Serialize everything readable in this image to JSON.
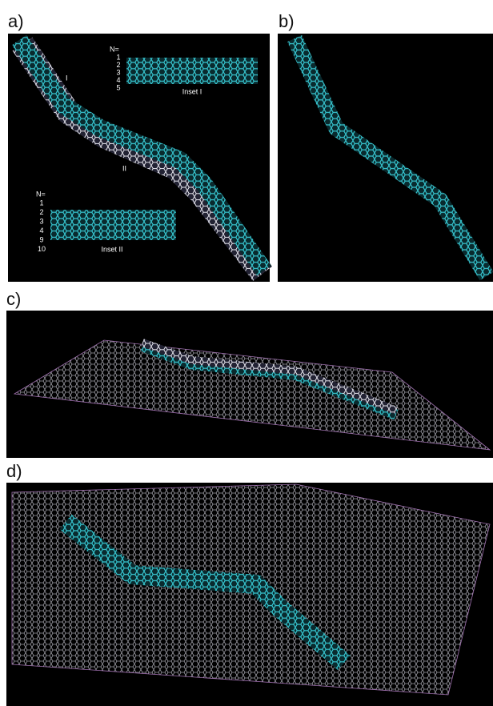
{
  "panels": [
    "a)",
    "b)",
    "c)",
    "d)"
  ],
  "panel_a": {
    "markers": [
      "I",
      "II"
    ],
    "inset_1": {
      "heading": "N=",
      "rows": [
        "1",
        "2",
        "3",
        "4",
        "5"
      ],
      "caption": "Inset I"
    },
    "inset_2": {
      "heading": "N=",
      "rows": [
        "1",
        "2",
        "3",
        "4",
        "9",
        "10"
      ],
      "caption": "Inset II"
    }
  }
}
